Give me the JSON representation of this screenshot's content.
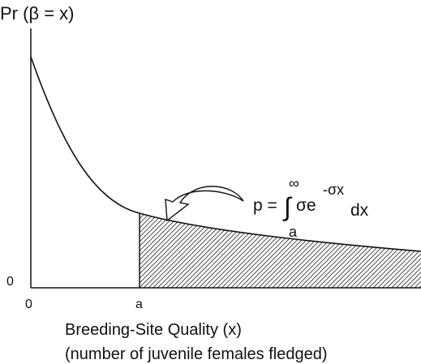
{
  "y_axis": {
    "label": "Pr (β = x)",
    "origin_label": "0"
  },
  "x_axis": {
    "origin_label": "0",
    "marker_label": "a",
    "label": "Breeding-Site Quality (x)",
    "sublabel": "(number of juvenile females fledged)"
  },
  "formula": {
    "lhs": "p =",
    "integral": "∫",
    "upper_limit": "∞",
    "integrand": "σe",
    "exponent": "-σx",
    "differential": "dx",
    "lower_limit": "a"
  }
}
